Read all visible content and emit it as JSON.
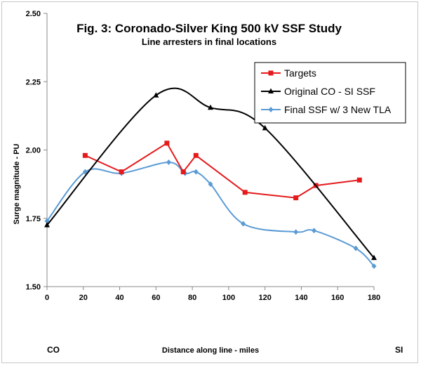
{
  "chart_data": {
    "type": "scatter",
    "title": "Fig. 3:  Coronado-Silver King 500 kV SSF Study",
    "subtitle": "Line arresters in final locations",
    "xlabel": "Distance along line - miles",
    "ylabel": "Surge magnitude - PU",
    "xlim": [
      0,
      180
    ],
    "ylim": [
      1.5,
      2.5
    ],
    "x_ticks": [
      "0",
      "20",
      "40",
      "60",
      "80",
      "100",
      "120",
      "140",
      "160",
      "180"
    ],
    "y_ticks": [
      "1.50",
      "1.75",
      "2.00",
      "2.25",
      "2.50"
    ],
    "end_labels": {
      "left": "CO",
      "right": "SI"
    },
    "legend_position": "top-right",
    "grid": false,
    "series": [
      {
        "name": "Targets",
        "color": "#e41a1c",
        "marker": "square",
        "smooth": false,
        "x": [
          21,
          41,
          66,
          75,
          82,
          109,
          137,
          148,
          172
        ],
        "y": [
          1.98,
          1.92,
          2.025,
          1.92,
          1.98,
          1.845,
          1.825,
          1.87,
          1.89
        ]
      },
      {
        "name": "Original CO - SI SSF",
        "color": "#000000",
        "marker": "triangle",
        "smooth": true,
        "x": [
          0,
          60,
          90,
          120,
          180
        ],
        "y": [
          1.725,
          2.2,
          2.155,
          2.08,
          1.605
        ]
      },
      {
        "name": "Final SSF w/ 3 New TLA",
        "color": "#5b9bd5",
        "marker": "diamond",
        "smooth": true,
        "x": [
          0,
          21,
          41,
          67,
          76,
          82,
          90,
          108,
          137,
          147,
          170,
          180
        ],
        "y": [
          1.74,
          1.92,
          1.915,
          1.955,
          1.915,
          1.92,
          1.875,
          1.73,
          1.7,
          1.705,
          1.64,
          1.575
        ]
      }
    ]
  }
}
